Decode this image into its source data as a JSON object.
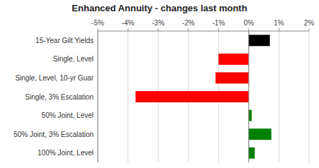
{
  "chart_data": {
    "type": "bar",
    "orientation": "horizontal",
    "title": "Enhanced Annuity - changes last month",
    "categories": [
      "15-Year Gilt Yields",
      "Single, Level",
      "Single, Level, 10-yr Guar",
      "Single, 3% Escalation",
      "50% Joint, Level",
      "50% Joint, 3% Escalation",
      "100% Joint, Level"
    ],
    "values": [
      0.7,
      -1.0,
      -1.1,
      -3.75,
      0.1,
      0.75,
      0.2
    ],
    "colors": [
      "#000000",
      "#ff0000",
      "#ff0000",
      "#ff0000",
      "#008000",
      "#008000",
      "#008000"
    ],
    "xlim": [
      -5,
      2
    ],
    "xticks": [
      {
        "value": -5,
        "label": "-5%"
      },
      {
        "value": -4,
        "label": "-4%"
      },
      {
        "value": -3,
        "label": "-3%"
      },
      {
        "value": -2,
        "label": "-2%"
      },
      {
        "value": -1,
        "label": "-1%"
      },
      {
        "value": 0,
        "label": "0%"
      },
      {
        "value": 1,
        "label": "1%"
      },
      {
        "value": 2,
        "label": "2%"
      }
    ],
    "grid": true
  }
}
